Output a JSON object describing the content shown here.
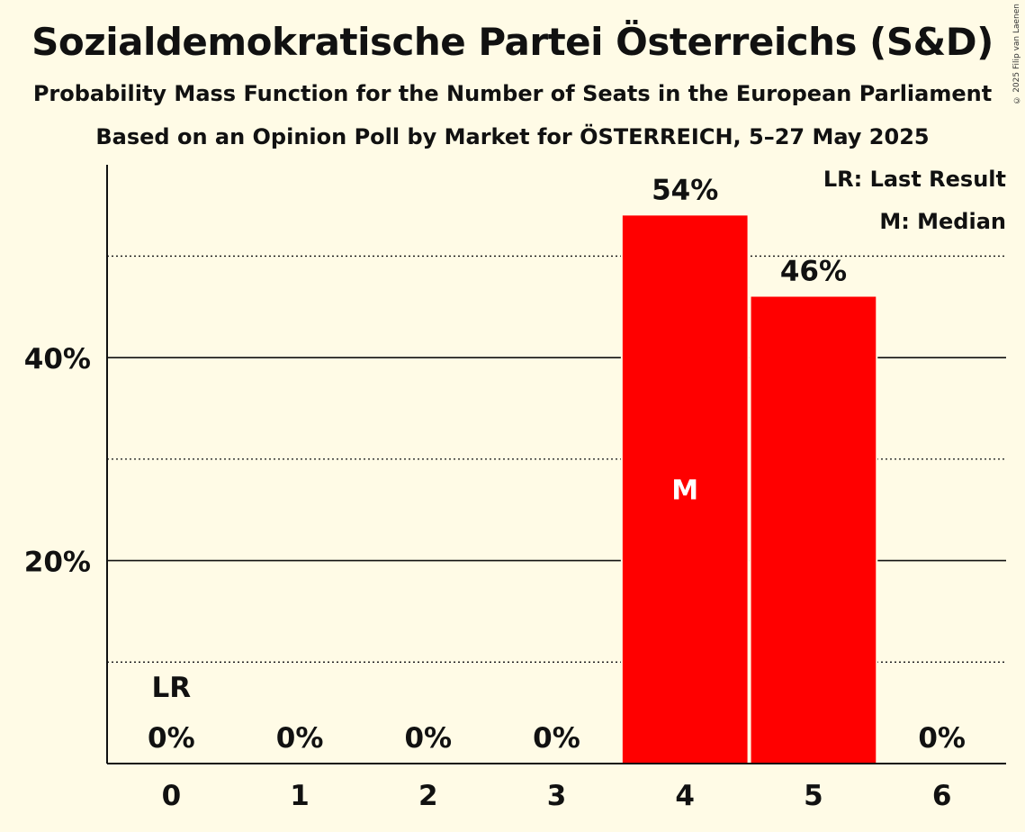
{
  "header": {
    "title": "Sozialdemokratische Partei Österreichs (S&D)",
    "subtitle": "Probability Mass Function for the Number of Seats in the European Parliament",
    "subtitle2": "Based on an Opinion Poll by Market for ÖSTERREICH, 5–27 May 2025",
    "copyright": "© 2025 Filip van Laenen"
  },
  "legend": {
    "last_result": "LR: Last Result",
    "median": "M: Median"
  },
  "colors": {
    "bar": "#ff0000",
    "background": "#fffbe6",
    "text": "#111111"
  },
  "chart_data": {
    "type": "bar",
    "categories": [
      "0",
      "1",
      "2",
      "3",
      "4",
      "5",
      "6"
    ],
    "values": [
      0,
      0,
      0,
      0,
      54,
      46,
      0
    ],
    "value_labels": [
      "0%",
      "0%",
      "0%",
      "0%",
      "54%",
      "46%",
      "0%"
    ],
    "ylim": [
      0,
      59
    ],
    "yticks": [
      20,
      40
    ],
    "ytick_labels": [
      "20%",
      "40%"
    ],
    "minor_gridlines": [
      10,
      30,
      50
    ],
    "last_result_category": "0",
    "last_result_label": "LR",
    "median_category": "4",
    "median_label": "M",
    "legend_position": "top-right"
  }
}
